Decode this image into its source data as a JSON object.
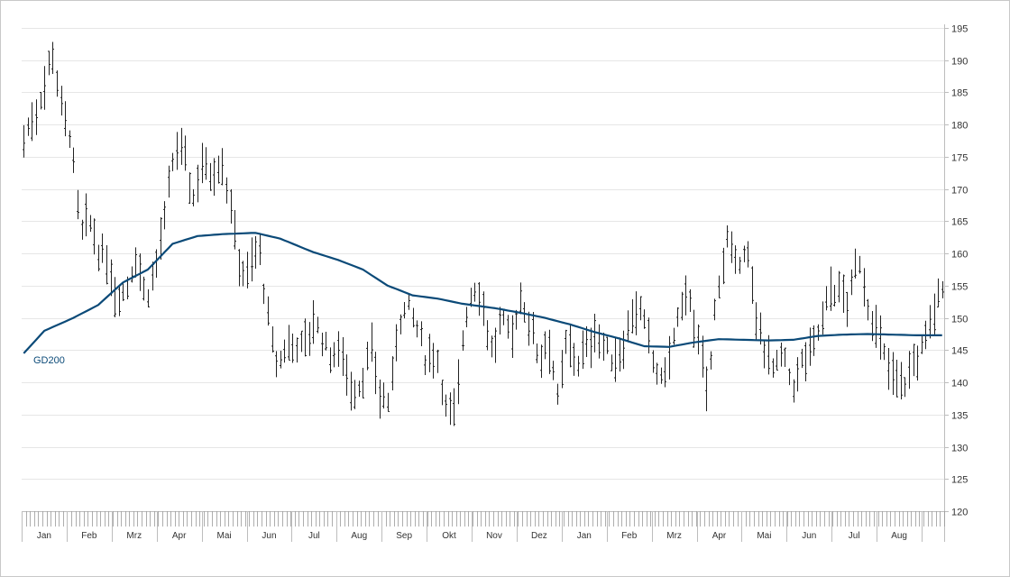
{
  "chart_data": {
    "type": "line",
    "ylim": [
      120,
      195
    ],
    "yticks": [
      120,
      125,
      130,
      135,
      140,
      145,
      150,
      155,
      160,
      165,
      170,
      175,
      180,
      185,
      190,
      195
    ],
    "months": [
      "Jan",
      "Feb",
      "Mrz",
      "Apr",
      "Mai",
      "Jun",
      "Jul",
      "Aug",
      "Sep",
      "Okt",
      "Nov",
      "Dez",
      "Jan",
      "Feb",
      "Mrz",
      "Apr",
      "Mai",
      "Jun",
      "Jul",
      "Aug"
    ],
    "grid": true,
    "colors": {
      "price": "#222222",
      "ma": "#0b4a78",
      "grid": "#e6e6e6",
      "axis": "#bdbdbd"
    },
    "ma_label": "GD200",
    "price_anchors": [
      [
        0,
        178
      ],
      [
        1,
        181
      ],
      [
        2,
        185
      ],
      [
        3,
        192
      ],
      [
        4,
        183
      ],
      [
        5,
        178
      ],
      [
        6,
        163
      ],
      [
        7,
        165
      ],
      [
        8,
        160
      ],
      [
        9,
        158
      ],
      [
        10,
        153
      ],
      [
        11,
        155
      ],
      [
        12,
        160
      ],
      [
        13,
        153
      ],
      [
        14,
        158
      ],
      [
        15,
        165
      ],
      [
        16,
        175
      ],
      [
        17,
        177
      ],
      [
        18,
        168
      ],
      [
        19,
        175
      ],
      [
        20,
        172
      ],
      [
        21,
        175
      ],
      [
        22,
        168
      ],
      [
        23,
        158
      ],
      [
        24,
        157
      ],
      [
        25,
        162
      ],
      [
        26,
        150
      ],
      [
        27,
        142
      ],
      [
        28,
        146
      ],
      [
        29,
        146
      ],
      [
        30,
        146
      ],
      [
        31,
        150
      ],
      [
        32,
        146
      ],
      [
        33,
        144
      ],
      [
        34,
        145
      ],
      [
        35,
        138
      ],
      [
        36,
        140
      ],
      [
        37,
        145
      ],
      [
        38,
        138
      ],
      [
        39,
        137
      ],
      [
        40,
        150
      ],
      [
        41,
        152
      ],
      [
        42,
        148
      ],
      [
        43,
        143
      ],
      [
        44,
        145
      ],
      [
        45,
        136
      ],
      [
        46,
        135
      ],
      [
        47,
        150
      ],
      [
        48,
        155
      ],
      [
        49,
        152
      ],
      [
        50,
        144
      ],
      [
        51,
        150
      ],
      [
        52,
        147
      ],
      [
        53,
        153
      ],
      [
        54,
        149
      ],
      [
        55,
        144
      ],
      [
        56,
        147
      ],
      [
        57,
        137
      ],
      [
        58,
        147
      ],
      [
        59,
        143
      ],
      [
        60,
        145
      ],
      [
        61,
        148
      ],
      [
        62,
        145
      ],
      [
        63,
        143
      ],
      [
        64,
        146
      ],
      [
        65,
        152
      ],
      [
        66,
        150
      ],
      [
        67,
        144
      ],
      [
        68,
        140
      ],
      [
        69,
        145
      ],
      [
        70,
        151
      ],
      [
        71,
        154
      ],
      [
        72,
        145
      ],
      [
        73,
        139
      ],
      [
        74,
        155
      ],
      [
        75,
        162
      ],
      [
        76,
        157
      ],
      [
        77,
        162
      ],
      [
        78,
        150
      ],
      [
        79,
        146
      ],
      [
        80,
        142
      ],
      [
        81,
        144
      ],
      [
        82,
        139
      ],
      [
        83,
        143
      ],
      [
        84,
        145
      ],
      [
        85,
        149
      ],
      [
        86,
        155
      ],
      [
        87,
        154
      ],
      [
        88,
        152
      ],
      [
        89,
        160
      ],
      [
        90,
        152
      ],
      [
        91,
        148
      ],
      [
        92,
        143
      ],
      [
        93,
        141
      ],
      [
        94,
        140
      ],
      [
        95,
        143
      ],
      [
        96,
        146
      ],
      [
        97,
        151
      ],
      [
        98,
        155
      ]
    ],
    "ma_anchors": [
      [
        0,
        144.5
      ],
      [
        5,
        148
      ],
      [
        12,
        150
      ],
      [
        18,
        152
      ],
      [
        24,
        155.5
      ],
      [
        30,
        157.5
      ],
      [
        36,
        161.5
      ],
      [
        42,
        162.7
      ],
      [
        48,
        163
      ],
      [
        56,
        163.2
      ],
      [
        62,
        162.3
      ],
      [
        70,
        160.2
      ],
      [
        76,
        159
      ],
      [
        82,
        157.5
      ],
      [
        88,
        155
      ],
      [
        94,
        153.5
      ],
      [
        100,
        153
      ],
      [
        106,
        152.2
      ],
      [
        114,
        151.5
      ],
      [
        120,
        150.8
      ],
      [
        126,
        150
      ],
      [
        132,
        149
      ],
      [
        138,
        147.8
      ],
      [
        144,
        146.8
      ],
      [
        150,
        145.6
      ],
      [
        156,
        145.5
      ],
      [
        162,
        146.2
      ],
      [
        168,
        146.7
      ],
      [
        174,
        146.6
      ],
      [
        180,
        146.5
      ],
      [
        186,
        146.6
      ],
      [
        192,
        147.2
      ],
      [
        198,
        147.4
      ],
      [
        204,
        147.5
      ],
      [
        210,
        147.4
      ],
      [
        216,
        147.3
      ],
      [
        222,
        147.3
      ]
    ],
    "ma_days": 223,
    "bar_days": 223
  }
}
